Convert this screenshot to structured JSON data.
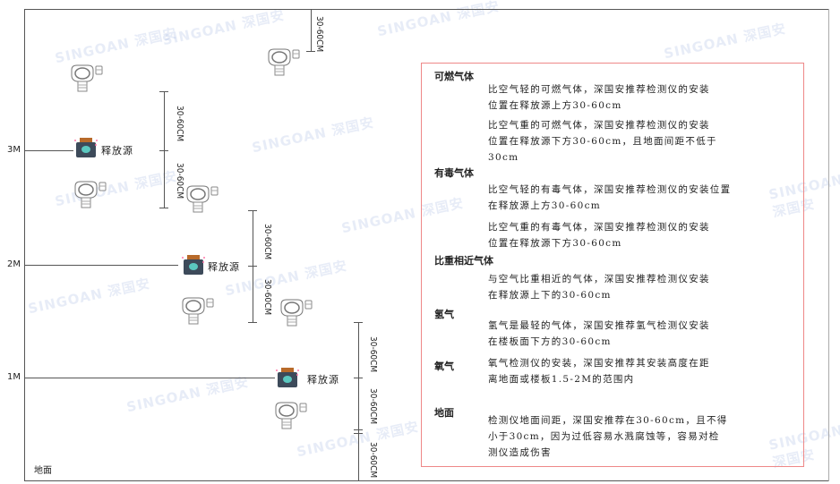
{
  "watermark": "SINGOAN 深国安",
  "levels": {
    "m3": "3M",
    "m2": "2M",
    "m1": "1M",
    "ground": "地面"
  },
  "source_label": "释放源",
  "dim_label": "30-60CM",
  "colors": {
    "panel_border": "#e88888",
    "source_cap": "#b86a2a",
    "source_body": "#3d4a5a",
    "source_face": "#5bc8c0"
  },
  "panel": {
    "sections": [
      {
        "title": "可燃气体",
        "paragraphs": [
          "比空气轻的可燃气体，深国安推荐检测仪的安装\n位置在释放源上方30-60cm",
          "比空气重的可燃气体，深国安推荐检测仪的安装\n位置在释放源下方30-60cm，且地面间距不低于\n30cm"
        ]
      },
      {
        "title": "有毒气体",
        "paragraphs": [
          "比空气轻的有毒气体，深国安推荐检测仪的安装位置\n在释放源上方30-60cm",
          "比空气重的有毒气体，深国安推荐检测仪的安装\n位置在释放源下方30-60cm"
        ]
      },
      {
        "title": "比重相近气体",
        "paragraphs": [
          "与空气比重相近的气体，深国安推荐检测仪安装\n在释放源上下的30-60cm"
        ]
      },
      {
        "title": "氢气",
        "paragraphs": [
          "氢气是最轻的气体，深国安推荐氢气检测仪安装\n在楼板面下方的30-60cm"
        ]
      },
      {
        "title": "氧气",
        "paragraphs": [
          "氧气检测仪的安装，深国安推荐其安装高度在距\n离地面或楼板1.5-2M的范围内"
        ]
      },
      {
        "title": "地面",
        "paragraphs": [
          "检测仪地面间距，深国安推荐在30-60cm，且不得\n小于30cm，因为过低容易水溅腐蚀等，容易对检\n测仪造成伤害"
        ]
      }
    ]
  }
}
